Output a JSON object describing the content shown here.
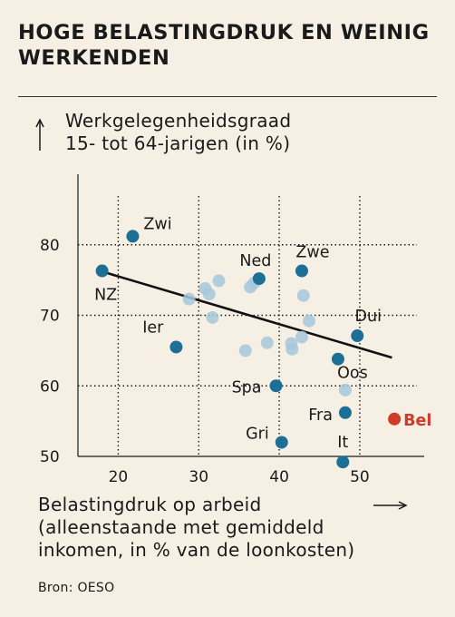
{
  "chart_data": {
    "type": "scatter",
    "title": "HOGE BELASTINGDRUK EN WEINIG WERKENDEN",
    "ylabel_line1": "Werkgelegenheidsgraad",
    "ylabel_line2": "15- tot 64-jarigen (in %)",
    "xlabel_line1": "Belastingdruk op arbeid",
    "xlabel_line2": "(alleenstaande met gemiddeld",
    "xlabel_line3": "inkomen, in % van de loonkosten)",
    "source": "Bron: OESO",
    "xlim": [
      15,
      58
    ],
    "ylim": [
      50,
      90
    ],
    "xticks": [
      20,
      30,
      40,
      50
    ],
    "yticks": [
      50,
      60,
      70,
      80
    ],
    "grid": true,
    "colors": {
      "labeled": "#1d6f95",
      "unlabeled": "#a6c8dc",
      "highlight": "#d03a27",
      "trend": "#111111",
      "background": "#f6f0e4"
    },
    "trendline": {
      "x": [
        18,
        54
      ],
      "y": [
        76.2,
        64
      ]
    },
    "labeled_points": [
      {
        "label": "Zwi",
        "x": 21.8,
        "y": 81.2
      },
      {
        "label": "NZ",
        "x": 18,
        "y": 76.3
      },
      {
        "label": "Ned",
        "x": 37.5,
        "y": 75.2
      },
      {
        "label": "Zwe",
        "x": 42.8,
        "y": 76.3
      },
      {
        "label": "Ier",
        "x": 27.2,
        "y": 65.5
      },
      {
        "label": "Dui",
        "x": 49.7,
        "y": 67.1
      },
      {
        "label": "Oos",
        "x": 47.3,
        "y": 63.8
      },
      {
        "label": "Spa",
        "x": 39.6,
        "y": 60.0
      },
      {
        "label": "Fra",
        "x": 48.2,
        "y": 56.2
      },
      {
        "label": "Gri",
        "x": 40.3,
        "y": 52.0
      },
      {
        "label": "It",
        "x": 47.9,
        "y": 49.2
      },
      {
        "label": "Bel",
        "x": 54.3,
        "y": 55.3,
        "highlight": true
      }
    ],
    "unlabeled_points": [
      {
        "x": 28.8,
        "y": 72.3
      },
      {
        "x": 30.8,
        "y": 73.8
      },
      {
        "x": 31.3,
        "y": 73.0
      },
      {
        "x": 32.5,
        "y": 74.9
      },
      {
        "x": 31.7,
        "y": 69.7
      },
      {
        "x": 36.4,
        "y": 74.0
      },
      {
        "x": 36.9,
        "y": 74.6
      },
      {
        "x": 43.0,
        "y": 72.8
      },
      {
        "x": 43.7,
        "y": 69.2
      },
      {
        "x": 42.8,
        "y": 66.9
      },
      {
        "x": 41.5,
        "y": 66.0
      },
      {
        "x": 41.6,
        "y": 65.2
      },
      {
        "x": 38.5,
        "y": 66.1
      },
      {
        "x": 35.8,
        "y": 65.0
      },
      {
        "x": 48.2,
        "y": 59.4
      }
    ]
  }
}
